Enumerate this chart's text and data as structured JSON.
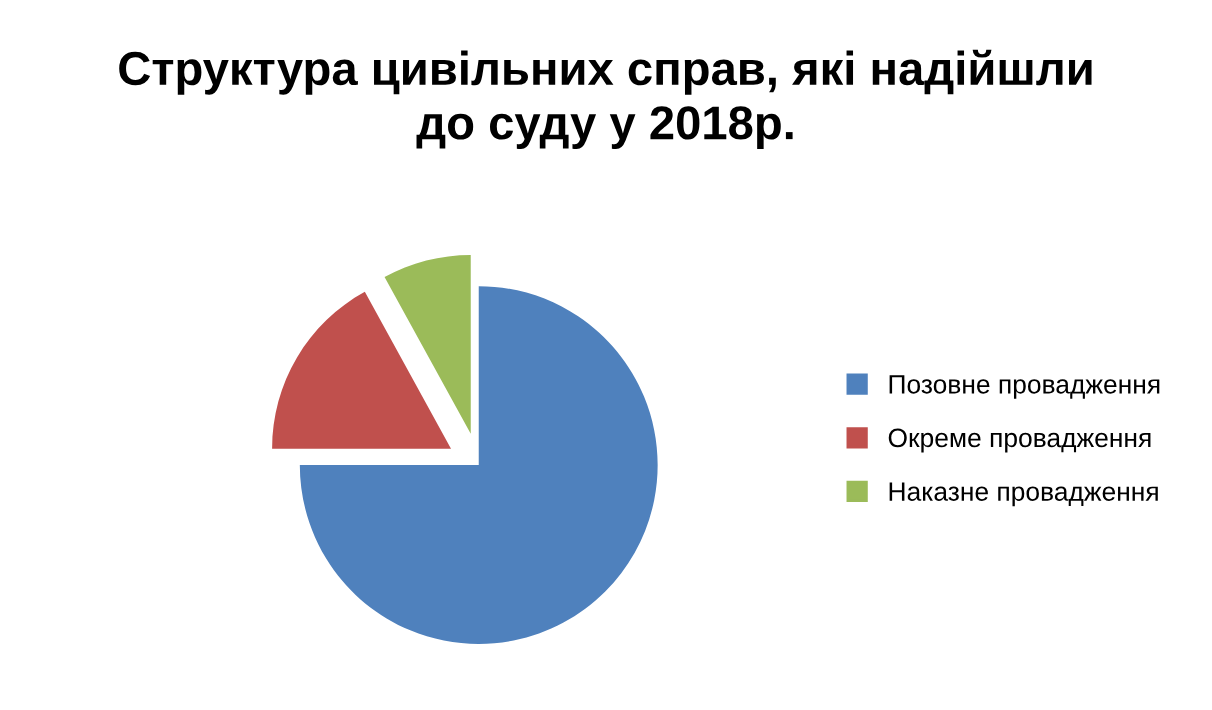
{
  "chart_data": {
    "type": "pie",
    "title": "Структура цивільних справ, які надійшли\nдо суду у 2018р.",
    "categories": [
      "Позовне провадження",
      "Окреме провадження",
      "Наказне провадження"
    ],
    "values": [
      75,
      17,
      8
    ],
    "colors": [
      "#4f81bd",
      "#c0504d",
      "#9bbb59"
    ],
    "legend": "right"
  }
}
